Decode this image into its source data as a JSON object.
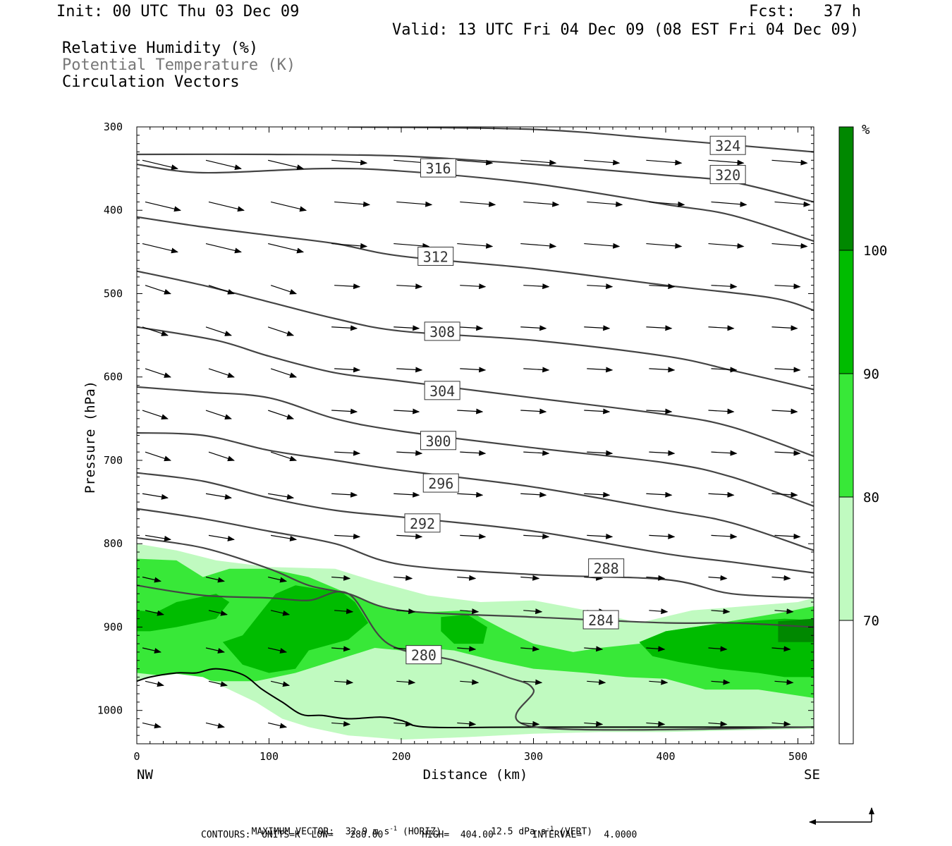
{
  "header": {
    "init": "Init: 00 UTC Thu 03 Dec 09",
    "fcst": "Fcst:   37 h",
    "valid": "Valid: 13 UTC Fri 04 Dec 09 (08 EST Fri 04 Dec 09)",
    "fields": [
      "Relative Humidity (%)",
      "Potential Temperature (K)",
      "Circulation Vectors"
    ]
  },
  "footer": {
    "max_vector_prefix": "MAXIMUM VECTOR:  32.9 m s",
    "max_vector_exp1": "-1",
    "max_vector_mid": " (HORIZ)         12.5 dPa s",
    "max_vector_exp2": "-1",
    "max_vector_suffix": " (VERT)",
    "contours": "CONTOURS:  UNITS=K  LOW=   280.00       HIGH=  404.00       INTERVAL=    4.0000"
  },
  "colors": {
    "rh_70_80": "#c0fac0",
    "rh_80_90": "#38e838",
    "rh_90_100": "#00bc00",
    "rh_100_plus": "#008800",
    "contour": "#444444"
  },
  "chart_data": {
    "type": "cross-section",
    "xlabel": "Distance (km)",
    "ylabel": "Pressure (hPa)",
    "xlim": [
      0,
      512
    ],
    "ylim": [
      1040,
      300
    ],
    "x_ticks": [
      0,
      100,
      200,
      300,
      400,
      500
    ],
    "x_tick_labels": [
      "0",
      "100",
      "200",
      "300",
      "400",
      "500"
    ],
    "y_ticks": [
      300,
      400,
      500,
      600,
      700,
      800,
      900,
      1000
    ],
    "y_tick_labels": [
      "300",
      "400",
      "500",
      "600",
      "700",
      "800",
      "900",
      "1000"
    ],
    "end_labels": {
      "left": "NW",
      "right": "SE"
    },
    "colorbar": {
      "unit": "%",
      "levels": [
        70,
        80,
        90,
        100
      ],
      "level_labels": [
        "70",
        "80",
        "90",
        "100"
      ]
    },
    "theta_contours": [
      {
        "value": 324,
        "label": "324",
        "points": [
          [
            160,
            300
          ],
          [
            300,
            303
          ],
          [
            400,
            315
          ],
          [
            512,
            330
          ]
        ],
        "label_at": [
          447,
          323
        ]
      },
      {
        "value": 320,
        "label": "320",
        "points": [
          [
            0,
            333
          ],
          [
            100,
            333
          ],
          [
            200,
            335
          ],
          [
            300,
            345
          ],
          [
            400,
            358
          ],
          [
            450,
            366
          ],
          [
            512,
            390
          ]
        ],
        "label_at": [
          447,
          358
        ]
      },
      {
        "value": 316,
        "label": "316",
        "points": [
          [
            0,
            345
          ],
          [
            50,
            355
          ],
          [
            140,
            350
          ],
          [
            200,
            353
          ],
          [
            300,
            368
          ],
          [
            400,
            393
          ],
          [
            450,
            406
          ],
          [
            512,
            437
          ]
        ],
        "label_at": [
          228,
          350
        ]
      },
      {
        "value": 312,
        "label": "312",
        "points": [
          [
            0,
            408
          ],
          [
            50,
            420
          ],
          [
            100,
            430
          ],
          [
            150,
            440
          ],
          [
            200,
            455
          ],
          [
            300,
            470
          ],
          [
            400,
            490
          ],
          [
            480,
            505
          ],
          [
            512,
            520
          ]
        ],
        "label_at": [
          226,
          456
        ]
      },
      {
        "value": 308,
        "label": "308",
        "points": [
          [
            0,
            473
          ],
          [
            50,
            490
          ],
          [
            100,
            510
          ],
          [
            150,
            530
          ],
          [
            200,
            545
          ],
          [
            300,
            556
          ],
          [
            400,
            575
          ],
          [
            450,
            592
          ],
          [
            512,
            615
          ]
        ],
        "label_at": [
          231,
          546
        ]
      },
      {
        "value": 304,
        "label": "304",
        "points": [
          [
            0,
            540
          ],
          [
            60,
            556
          ],
          [
            100,
            575
          ],
          [
            150,
            595
          ],
          [
            200,
            605
          ],
          [
            300,
            625
          ],
          [
            400,
            645
          ],
          [
            450,
            660
          ],
          [
            512,
            695
          ]
        ],
        "label_at": [
          231,
          617
        ]
      },
      {
        "value": 300,
        "label": "300",
        "points": [
          [
            0,
            612
          ],
          [
            50,
            618
          ],
          [
            100,
            625
          ],
          [
            150,
            650
          ],
          [
            200,
            665
          ],
          [
            300,
            685
          ],
          [
            400,
            703
          ],
          [
            450,
            720
          ],
          [
            512,
            755
          ]
        ],
        "label_at": [
          228,
          677
        ]
      },
      {
        "value": 296,
        "label": "296",
        "points": [
          [
            0,
            667
          ],
          [
            50,
            670
          ],
          [
            100,
            688
          ],
          [
            150,
            700
          ],
          [
            200,
            712
          ],
          [
            300,
            732
          ],
          [
            400,
            760
          ],
          [
            450,
            775
          ],
          [
            512,
            808
          ]
        ],
        "label_at": [
          230,
          728
        ]
      },
      {
        "value": 292,
        "label": "292",
        "points": [
          [
            0,
            715
          ],
          [
            50,
            725
          ],
          [
            100,
            745
          ],
          [
            150,
            760
          ],
          [
            200,
            768
          ],
          [
            300,
            785
          ],
          [
            400,
            812
          ],
          [
            450,
            822
          ],
          [
            512,
            835
          ]
        ],
        "label_at": [
          216,
          776
        ]
      },
      {
        "value": 288,
        "label": "288",
        "points": [
          [
            0,
            758
          ],
          [
            50,
            770
          ],
          [
            100,
            785
          ],
          [
            150,
            800
          ],
          [
            200,
            825
          ],
          [
            300,
            837
          ],
          [
            400,
            843
          ],
          [
            450,
            860
          ],
          [
            512,
            865
          ]
        ],
        "label_at": [
          355,
          830
        ]
      },
      {
        "value": 284,
        "label": "284",
        "points": [
          [
            0,
            793
          ],
          [
            50,
            805
          ],
          [
            100,
            830
          ],
          [
            130,
            850
          ],
          [
            160,
            860
          ],
          [
            200,
            880
          ],
          [
            300,
            888
          ],
          [
            400,
            895
          ],
          [
            450,
            895
          ],
          [
            512,
            900
          ]
        ],
        "label_at": [
          351,
          892
        ]
      },
      {
        "value": 280,
        "label": "280",
        "points": [
          [
            0,
            850
          ],
          [
            50,
            862
          ],
          [
            100,
            865
          ],
          [
            130,
            868
          ],
          [
            160,
            860
          ],
          [
            190,
            920
          ],
          [
            240,
            940
          ],
          [
            280,
            960
          ],
          [
            300,
            975
          ],
          [
            302,
            1020
          ],
          [
            512,
            1020
          ]
        ],
        "label_at": [
          217,
          934
        ]
      }
    ],
    "vectors": {
      "rows_hpa": [
        340,
        390,
        440,
        490,
        540,
        590,
        640,
        690,
        740,
        790,
        840,
        880,
        925,
        965,
        1015
      ],
      "cols_km": [
        0,
        48,
        95,
        143,
        190,
        238,
        286,
        334,
        381,
        428,
        476
      ]
    }
  }
}
